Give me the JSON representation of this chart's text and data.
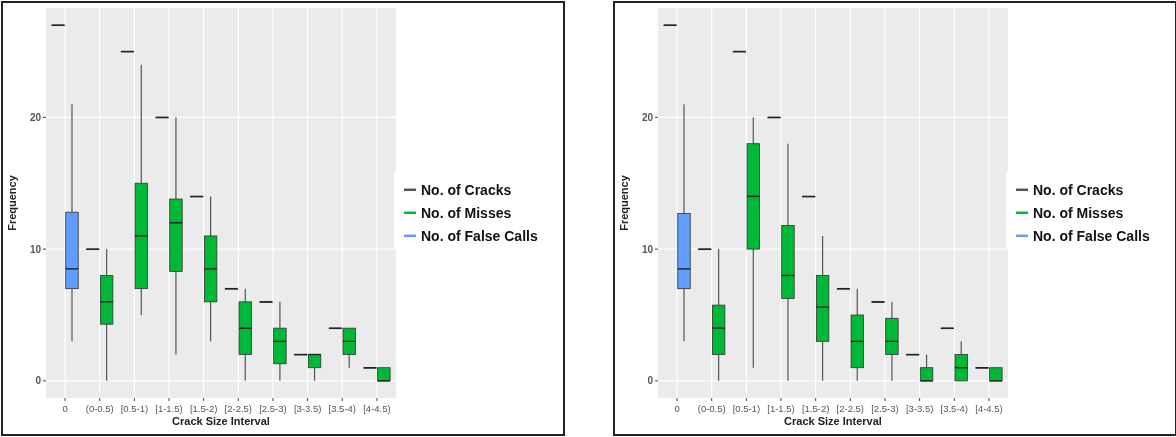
{
  "chart_data": [
    {
      "type": "box",
      "xlabel": "Crack Size Interval",
      "ylabel": "Frequency",
      "categories": [
        "0",
        "(0-0.5)",
        "[0.5-1)",
        "[1-1.5)",
        "[1.5-2)",
        "[2-2.5)",
        "[2.5-3)",
        "[3-3.5)",
        "[3.5-4)",
        "[4-4.5)"
      ],
      "ylim": [
        -1.3,
        28.3
      ],
      "yticks": [
        0,
        10,
        20
      ],
      "grid": true,
      "legend": "right",
      "series": [
        {
          "name": "No. of Cracks",
          "type": "box",
          "color": "#555555",
          "boxes": [
            {
              "low": 27,
              "q1": 27,
              "median": 27,
              "q3": 27,
              "high": 27
            },
            {
              "low": 10,
              "q1": 10,
              "median": 10,
              "q3": 10,
              "high": 10
            },
            {
              "low": 25,
              "q1": 25,
              "median": 25,
              "q3": 25,
              "high": 25
            },
            {
              "low": 20,
              "q1": 20,
              "median": 20,
              "q3": 20,
              "high": 20
            },
            {
              "low": 14,
              "q1": 14,
              "median": 14,
              "q3": 14,
              "high": 14
            },
            {
              "low": 7,
              "q1": 7,
              "median": 7,
              "q3": 7,
              "high": 7
            },
            {
              "low": 6,
              "q1": 6,
              "median": 6,
              "q3": 6,
              "high": 6
            },
            {
              "low": 2,
              "q1": 2,
              "median": 2,
              "q3": 2,
              "high": 2
            },
            {
              "low": 4,
              "q1": 4,
              "median": 4,
              "q3": 4,
              "high": 4
            },
            {
              "low": 1,
              "q1": 1,
              "median": 1,
              "q3": 1,
              "high": 1
            }
          ]
        },
        {
          "name": "No. of Misses",
          "type": "box",
          "color": "#00b838",
          "boxes": [
            null,
            {
              "low": 0,
              "q1": 4.3,
              "median": 6,
              "q3": 8,
              "high": 10
            },
            {
              "low": 5,
              "q1": 7,
              "median": 11,
              "q3": 15,
              "high": 24
            },
            {
              "low": 2,
              "q1": 8.3,
              "median": 12,
              "q3": 13.8,
              "high": 20
            },
            {
              "low": 3,
              "q1": 6,
              "median": 8.5,
              "q3": 11,
              "high": 14
            },
            {
              "low": 0,
              "q1": 2,
              "median": 4,
              "q3": 6,
              "high": 7
            },
            {
              "low": 0,
              "q1": 1.3,
              "median": 3,
              "q3": 4,
              "high": 6
            },
            {
              "low": 0,
              "q1": 1,
              "median": 2,
              "q3": 2,
              "high": 2
            },
            {
              "low": 1,
              "q1": 2,
              "median": 3,
              "q3": 4,
              "high": 4
            },
            {
              "low": 0,
              "q1": 0,
              "median": 0,
              "q3": 1,
              "high": 1
            }
          ]
        },
        {
          "name": "No. of False Calls",
          "type": "box",
          "color": "#619cff",
          "boxes": [
            {
              "low": 3,
              "q1": 7,
              "median": 8.5,
              "q3": 12.8,
              "high": 21
            },
            null,
            null,
            null,
            null,
            null,
            null,
            null,
            null,
            null
          ]
        }
      ]
    },
    {
      "type": "box",
      "xlabel": "Crack Size Interval",
      "ylabel": "Frequency",
      "categories": [
        "0",
        "(0-0.5)",
        "[0.5-1)",
        "[1-1.5)",
        "[1.5-2)",
        "[2-2.5)",
        "[2.5-3)",
        "[3-3.5)",
        "[3.5-4)",
        "[4-4.5)"
      ],
      "ylim": [
        -1.3,
        28.3
      ],
      "yticks": [
        0,
        10,
        20
      ],
      "grid": true,
      "legend": "right",
      "series": [
        {
          "name": "No. of Cracks",
          "type": "box",
          "color": "#555555",
          "boxes": [
            {
              "low": 27,
              "q1": 27,
              "median": 27,
              "q3": 27,
              "high": 27
            },
            {
              "low": 10,
              "q1": 10,
              "median": 10,
              "q3": 10,
              "high": 10
            },
            {
              "low": 25,
              "q1": 25,
              "median": 25,
              "q3": 25,
              "high": 25
            },
            {
              "low": 20,
              "q1": 20,
              "median": 20,
              "q3": 20,
              "high": 20
            },
            {
              "low": 14,
              "q1": 14,
              "median": 14,
              "q3": 14,
              "high": 14
            },
            {
              "low": 7,
              "q1": 7,
              "median": 7,
              "q3": 7,
              "high": 7
            },
            {
              "low": 6,
              "q1": 6,
              "median": 6,
              "q3": 6,
              "high": 6
            },
            {
              "low": 2,
              "q1": 2,
              "median": 2,
              "q3": 2,
              "high": 2
            },
            {
              "low": 4,
              "q1": 4,
              "median": 4,
              "q3": 4,
              "high": 4
            },
            {
              "low": 1,
              "q1": 1,
              "median": 1,
              "q3": 1,
              "high": 1
            }
          ]
        },
        {
          "name": "No. of Misses",
          "type": "box",
          "color": "#00b838",
          "boxes": [
            null,
            {
              "low": 0,
              "q1": 2,
              "median": 4,
              "q3": 5.75,
              "high": 10
            },
            {
              "low": 1,
              "q1": 10,
              "median": 14,
              "q3": 18,
              "high": 20
            },
            {
              "low": 0,
              "q1": 6.25,
              "median": 8,
              "q3": 11.8,
              "high": 18
            },
            {
              "low": 0,
              "q1": 3,
              "median": 5.6,
              "q3": 8,
              "high": 11
            },
            {
              "low": 0,
              "q1": 1,
              "median": 3,
              "q3": 5,
              "high": 7
            },
            {
              "low": 0,
              "q1": 2,
              "median": 3,
              "q3": 4.75,
              "high": 6
            },
            {
              "low": 0,
              "q1": 0,
              "median": 0,
              "q3": 1,
              "high": 2
            },
            {
              "low": 0,
              "q1": 0,
              "median": 1,
              "q3": 2,
              "high": 3
            },
            {
              "low": 0,
              "q1": 0,
              "median": 0,
              "q3": 1,
              "high": 1
            }
          ]
        },
        {
          "name": "No. of False Calls",
          "type": "box",
          "color": "#619cff",
          "boxes": [
            {
              "low": 3,
              "q1": 7,
              "median": 8.5,
              "q3": 12.7,
              "high": 21
            },
            null,
            null,
            null,
            null,
            null,
            null,
            null,
            null,
            null
          ]
        }
      ]
    }
  ]
}
